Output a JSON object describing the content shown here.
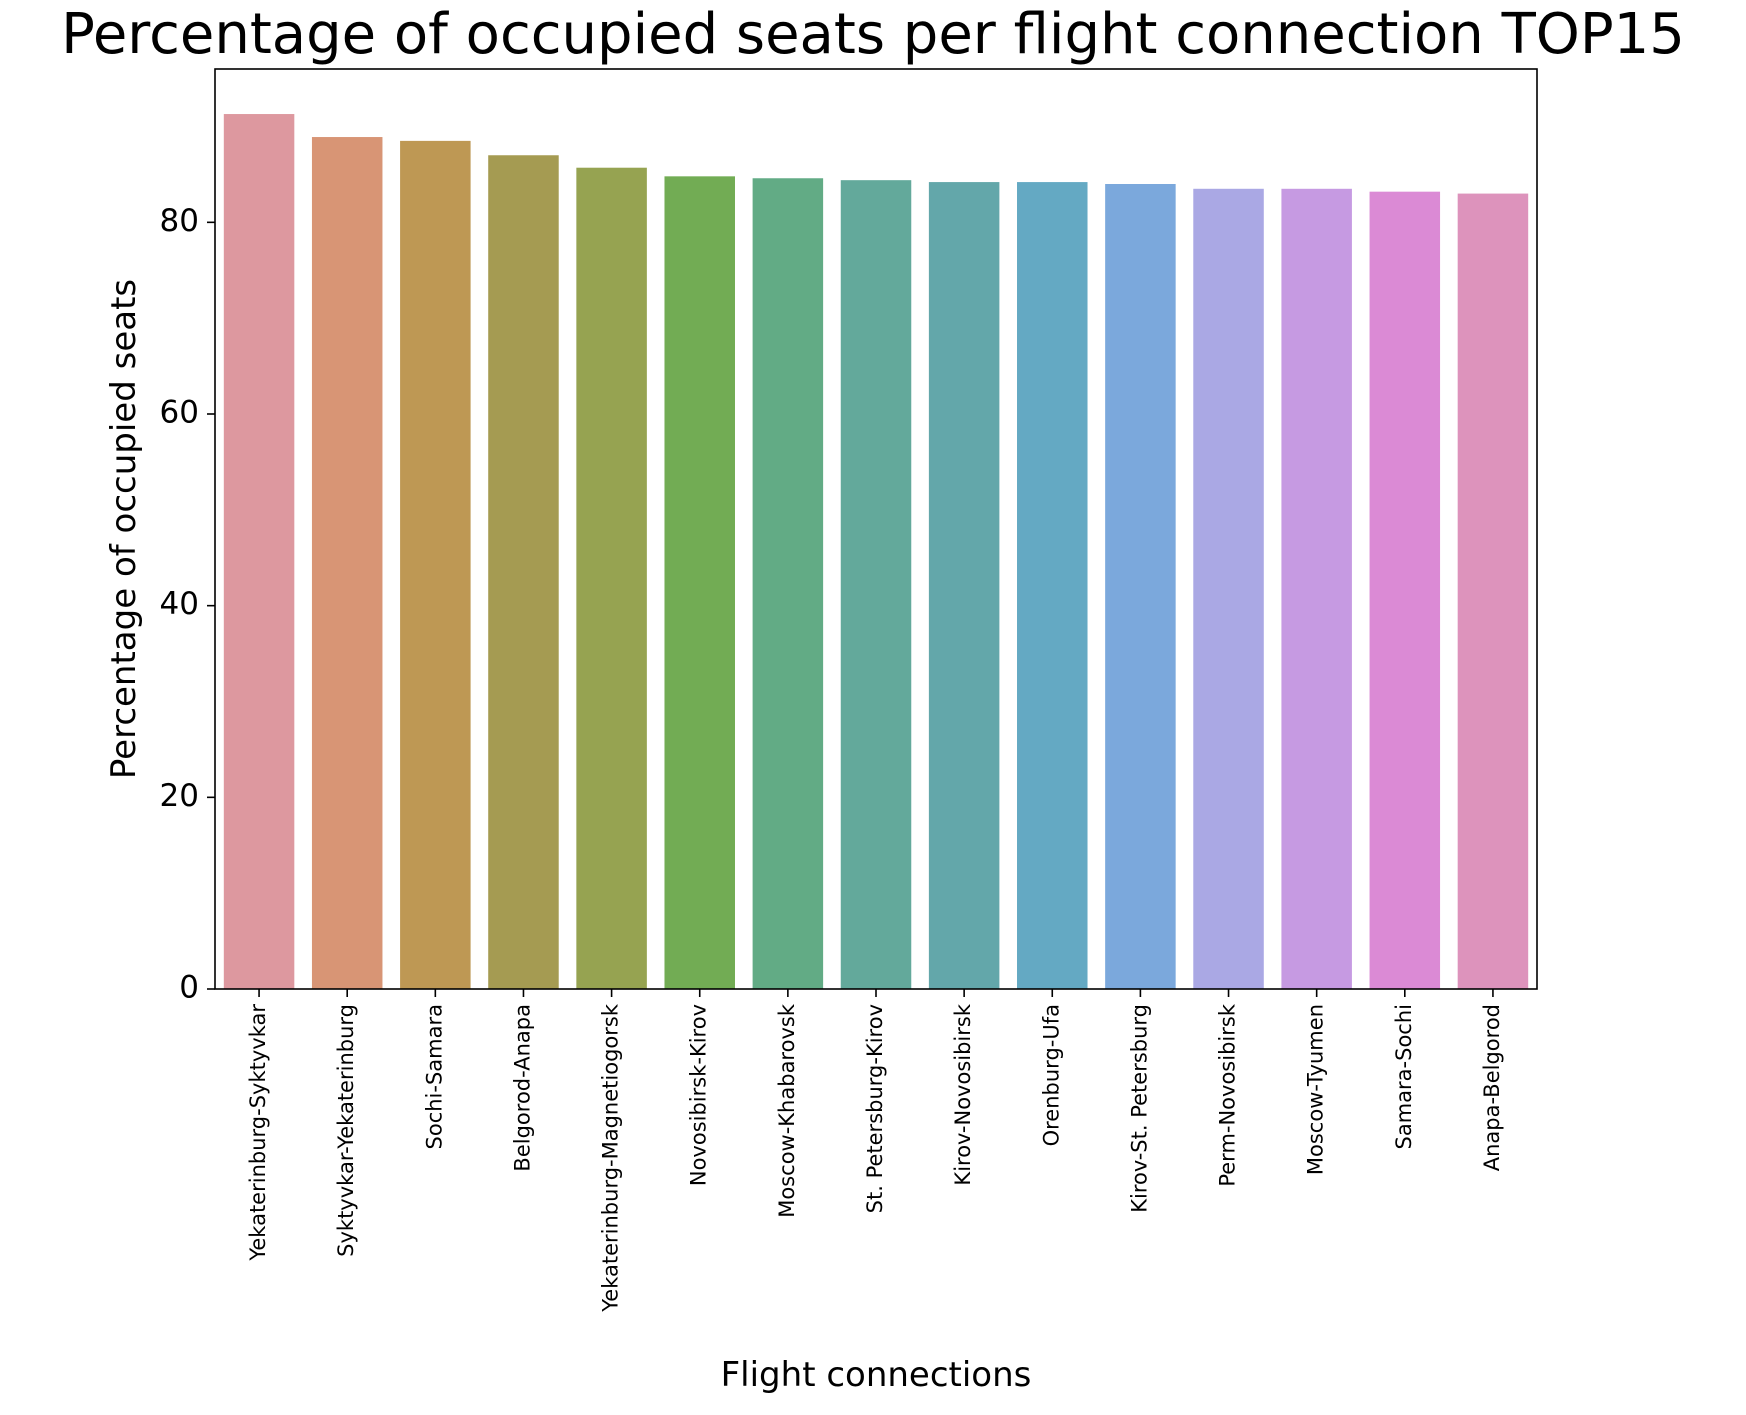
{
  "chart_data": {
    "type": "bar",
    "title": "Percentage of occupied seats per flight connection TOP15",
    "xlabel": "Flight connections",
    "ylabel": "Percentage of occupied seats",
    "ylim": [
      0,
      96
    ],
    "yticks": [
      0,
      20,
      40,
      60,
      80
    ],
    "grid": false,
    "categories": [
      "Yekaterinburg-Syktyvkar",
      "Syktyvkar-Yekaterinburg",
      "Sochi-Samara",
      "Belgorod-Anapa",
      "Yekaterinburg-Magnetiogorsk",
      "Novosibirsk-Kirov",
      "Moscow-Khabarovsk",
      "St. Petersburg-Kirov",
      "Kirov-Novosibirsk",
      "Orenburg-Ufa",
      "Kirov-St. Petersburg",
      "Perm-Novosibirsk",
      "Moscow-Tyumen",
      "Samara-Sochi",
      "Anapa-Belgorod"
    ],
    "values": [
      91.3,
      88.9,
      88.5,
      87.0,
      85.7,
      84.8,
      84.6,
      84.4,
      84.2,
      84.2,
      84.0,
      83.5,
      83.5,
      83.2,
      83.0
    ],
    "colors": [
      "#dd989f",
      "#d89575",
      "#be9854",
      "#a59b52",
      "#96a351",
      "#72ac54",
      "#62ab85",
      "#63a99b",
      "#63a7aa",
      "#64a9c3",
      "#7ba8dc",
      "#aaa8e4",
      "#c69ae2",
      "#db8ad5",
      "#dd93bc"
    ]
  }
}
